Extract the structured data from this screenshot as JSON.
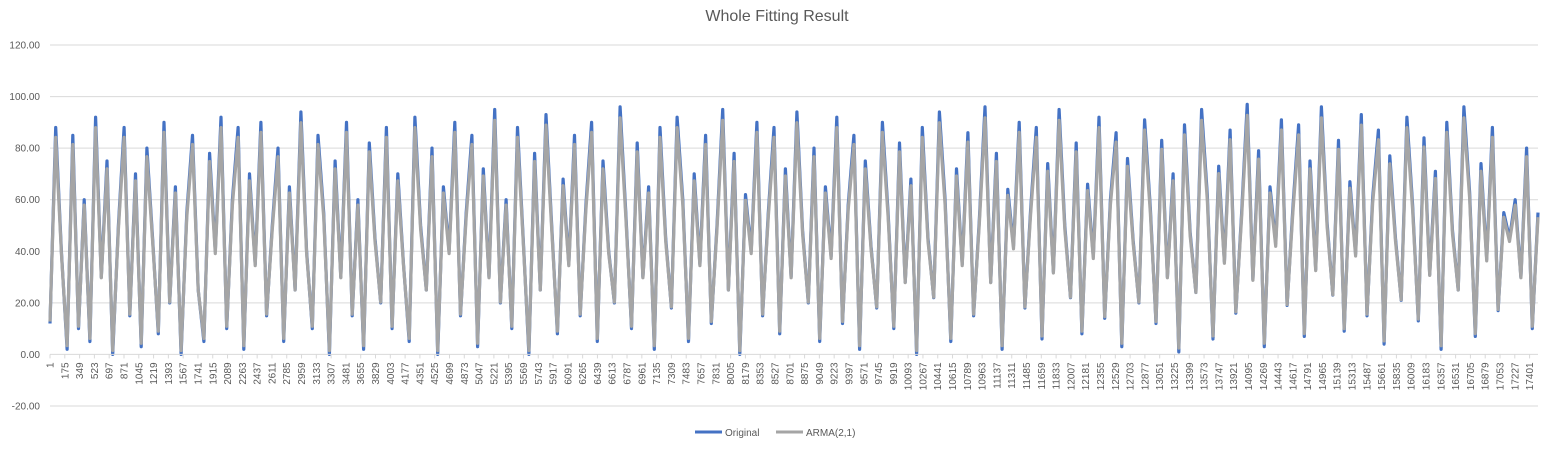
{
  "chart_data": {
    "type": "line",
    "title": "Whole Fitting Result",
    "xlabel": "",
    "ylabel": "",
    "ylim": [
      -20,
      120
    ],
    "y_ticks": [
      "120.00",
      "100.00",
      "80.00",
      "60.00",
      "40.00",
      "20.00",
      "0.00",
      "-20.00"
    ],
    "x_range": [
      1,
      17500
    ],
    "x_ticks": [
      "1",
      "175",
      "349",
      "523",
      "697",
      "871",
      "1045",
      "1219",
      "1393",
      "1567",
      "1741",
      "1915",
      "2089",
      "2263",
      "2437",
      "2611",
      "2785",
      "2959",
      "3133",
      "3307",
      "3481",
      "3655",
      "3829",
      "4003",
      "4177",
      "4351",
      "4525",
      "4699",
      "4873",
      "5047",
      "5221",
      "5395",
      "5569",
      "5743",
      "5917",
      "6091",
      "6265",
      "6439",
      "6613",
      "6787",
      "6961",
      "7135",
      "7309",
      "7483",
      "7657",
      "7831",
      "8005",
      "8179",
      "8353",
      "8527",
      "8701",
      "8875",
      "9049",
      "9223",
      "9397",
      "9571",
      "9745",
      "9919",
      "10093",
      "10267",
      "10441",
      "10615",
      "10789",
      "10963",
      "11137",
      "11311",
      "11485",
      "11659",
      "11833",
      "12007",
      "12181",
      "12355",
      "12529",
      "12703",
      "12877",
      "13051",
      "13225",
      "13399",
      "13573",
      "13747",
      "13921",
      "14095",
      "14269",
      "14443",
      "14617",
      "14791",
      "14965",
      "15139",
      "15313",
      "15487",
      "15661",
      "15835",
      "16009",
      "16183",
      "16357",
      "16531",
      "16705",
      "16879",
      "17053",
      "17227",
      "17401"
    ],
    "grid": true,
    "legend_position": "bottom",
    "series": [
      {
        "name": "Original",
        "color": "#4472c4"
      },
      {
        "name": "ARMA(2,1)",
        "color": "#a5a5a5"
      }
    ],
    "values": [
      12,
      88,
      40,
      2,
      85,
      10,
      60,
      5,
      92,
      30,
      75,
      0,
      50,
      88,
      15,
      70,
      3,
      80,
      45,
      8,
      90,
      20,
      65,
      0,
      55,
      85,
      25,
      5,
      78,
      40,
      92,
      10,
      60,
      88,
      2,
      70,
      35,
      90,
      15,
      50,
      80,
      5,
      65,
      25,
      94,
      40,
      10,
      85,
      55,
      0,
      75,
      30,
      90,
      15,
      60,
      2,
      82,
      45,
      20,
      88,
      10,
      70,
      35,
      5,
      92,
      50,
      25,
      80,
      0,
      65,
      40,
      90,
      15,
      55,
      85,
      3,
      72,
      30,
      95,
      20,
      60,
      10,
      88,
      45,
      0,
      78,
      25,
      93,
      50,
      8,
      68,
      35,
      85,
      15,
      58,
      90,
      5,
      75,
      40,
      20,
      96,
      55,
      10,
      82,
      30,
      65,
      2,
      88,
      45,
      18,
      92,
      60,
      5,
      70,
      35,
      85,
      12,
      50,
      95,
      25,
      78,
      0,
      62,
      40,
      90,
      15,
      55,
      88,
      8,
      72,
      30,
      94,
      48,
      20,
      80,
      5,
      65,
      38,
      92,
      12,
      58,
      85,
      2,
      75,
      42,
      18,
      90,
      55,
      10,
      82,
      28,
      68,
      0,
      88,
      45,
      22,
      94,
      60,
      5,
      72,
      35,
      86,
      15,
      52,
      96,
      28,
      78,
      2,
      64,
      42,
      90,
      18,
      56,
      88,
      6,
      74,
      32,
      95,
      50,
      22,
      82,
      8,
      66,
      38,
      92,
      14,
      60,
      86,
      3,
      76,
      44,
      20,
      91,
      57,
      12,
      83,
      30,
      70,
      1,
      89,
      47,
      24,
      95,
      62,
      6,
      73,
      36,
      87,
      16,
      54,
      97,
      29,
      79,
      3,
      65,
      43,
      91,
      19,
      57,
      89,
      7,
      75,
      33,
      96,
      51,
      23,
      83,
      9,
      67,
      39,
      93,
      15,
      61,
      87,
      4,
      77,
      45,
      21,
      92,
      58,
      13,
      84,
      31,
      71,
      2,
      90,
      48,
      25,
      96,
      63,
      7,
      74,
      37,
      88,
      17,
      55,
      45,
      60,
      30,
      80,
      10,
      55
    ]
  },
  "legend": {
    "original_label": "Original",
    "arma_label": "ARMA(2,1)"
  }
}
